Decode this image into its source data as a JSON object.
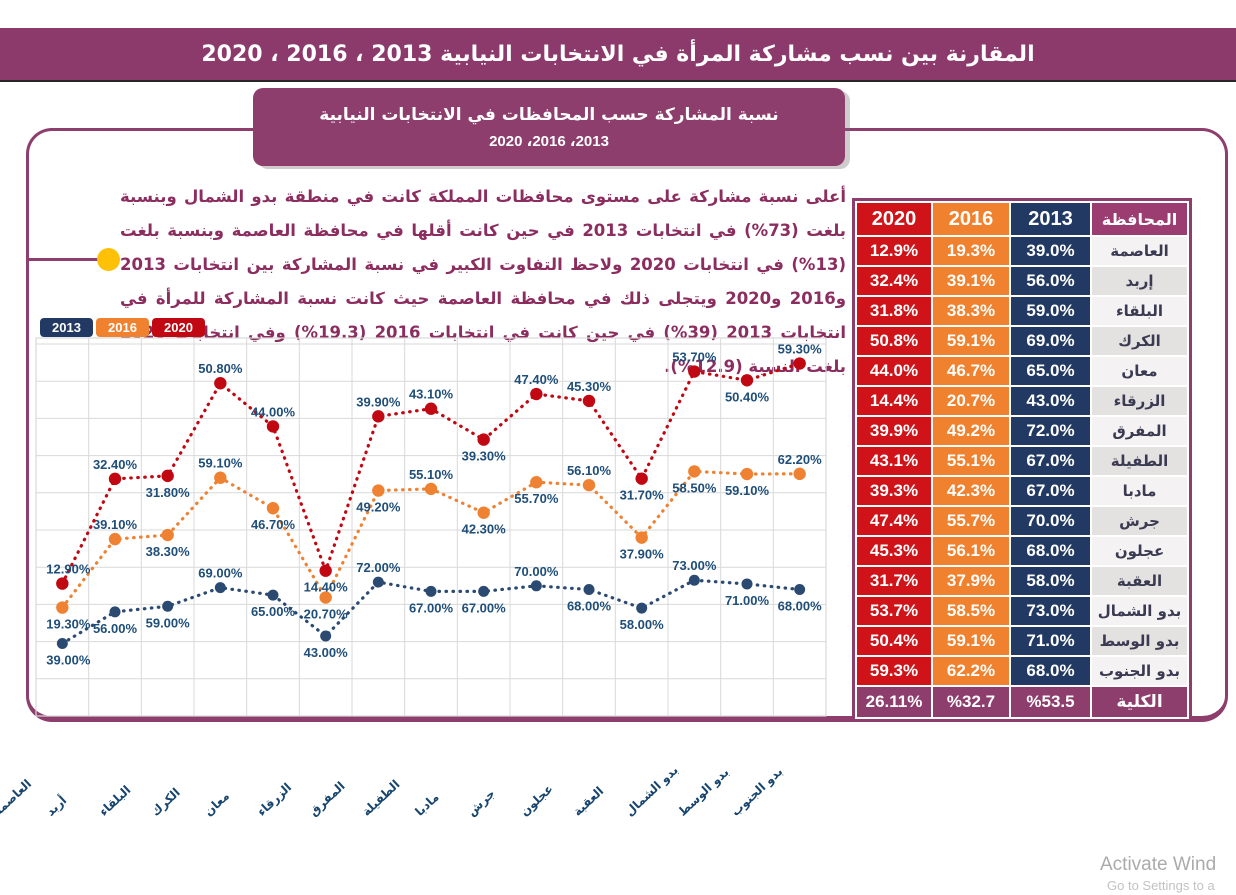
{
  "header": {
    "title": "المقارنة بين نسب مشاركة المرأة في الانتخابات النيابية 2013 ، 2016 ، 2020"
  },
  "subtitle": {
    "line1": "نسبة المشاركة حسب المحافظات في الانتخابات النيابية",
    "line2": "2013، 2016، 2020"
  },
  "note": {
    "text": "أعلى نسبة مشاركة على مستوى محافظات المملكة كانت في منطقة بدو الشمال وبنسبة بلغت (73%) في انتخابات 2013 في حين كانت أقلها في محافظة العاصمة وبنسبة بلغت (13%) في انتخابات 2020 ولاحظ التفاوت الكبير في نسبة المشاركة بين انتخابات 2013 و2016 و2020 ويتجلى ذلك في محافظة العاصمة حيث كانت نسبة المشاركة للمرأة في انتخابات 2013 (39%) في حين كانت في انتخابات 2016 (19.3%) وفي انتخابات 2020 بلغت النسبة (12.9%)."
  },
  "legend": [
    {
      "label": "2013",
      "color": "#223A63"
    },
    {
      "label": "2016",
      "color": "#F0822F"
    },
    {
      "label": "2020",
      "color": "#C00712"
    }
  ],
  "chart_data": {
    "type": "line",
    "stacked": true,
    "categories": [
      "العاصمة",
      "أربد",
      "البلقاء",
      "الكرك",
      "معان",
      "الزرقاء",
      "المفرق",
      "الطفيلة",
      "مادبا",
      "جرش",
      "عجلون",
      "العقبة",
      "بدو الشمال",
      "بدو الوسط",
      "بدو الجنوب"
    ],
    "series": [
      {
        "name": "2013",
        "color": "#2B4A72",
        "values": [
          39.0,
          56.0,
          59.0,
          69.0,
          65.0,
          43.0,
          72.0,
          67.0,
          67.0,
          70.0,
          68.0,
          58.0,
          73.0,
          71.0,
          68.0
        ]
      },
      {
        "name": "2016",
        "color": "#EF8232",
        "values": [
          19.3,
          39.1,
          38.3,
          59.1,
          46.7,
          20.7,
          49.2,
          55.1,
          42.3,
          55.7,
          56.1,
          37.9,
          58.5,
          59.1,
          62.2
        ]
      },
      {
        "name": "2020",
        "color": "#C00712",
        "values": [
          12.9,
          32.4,
          31.8,
          50.8,
          44.0,
          14.4,
          39.9,
          43.1,
          39.3,
          47.4,
          45.3,
          31.7,
          53.7,
          50.4,
          59.3
        ]
      }
    ],
    "title": "نسبة المشاركة حسب المحافظات في الانتخابات النيابية 2013، 2016، 2020",
    "xlabel": "",
    "ylabel": "",
    "ylim": [
      0,
      200
    ],
    "grid": true,
    "legend_position": "top-left",
    "label_suffix": "%",
    "label_decimals": 2,
    "label_color": "#1F4E79"
  },
  "table": {
    "headers": [
      "2020",
      "2016",
      "2013",
      "المحافظة"
    ],
    "rows": [
      {
        "name": "العاصمة",
        "y2020": "12.9%",
        "y2016": "19.3%",
        "y2013": "39.0%"
      },
      {
        "name": "إربد",
        "y2020": "32.4%",
        "y2016": "39.1%",
        "y2013": "56.0%"
      },
      {
        "name": "البلقاء",
        "y2020": "31.8%",
        "y2016": "38.3%",
        "y2013": "59.0%"
      },
      {
        "name": "الكرك",
        "y2020": "50.8%",
        "y2016": "59.1%",
        "y2013": "69.0%"
      },
      {
        "name": "معان",
        "y2020": "44.0%",
        "y2016": "46.7%",
        "y2013": "65.0%"
      },
      {
        "name": "الزرقاء",
        "y2020": "14.4%",
        "y2016": "20.7%",
        "y2013": "43.0%"
      },
      {
        "name": "المفرق",
        "y2020": "39.9%",
        "y2016": "49.2%",
        "y2013": "72.0%"
      },
      {
        "name": "الطفيلة",
        "y2020": "43.1%",
        "y2016": "55.1%",
        "y2013": "67.0%"
      },
      {
        "name": "مادبا",
        "y2020": "39.3%",
        "y2016": "42.3%",
        "y2013": "67.0%"
      },
      {
        "name": "جرش",
        "y2020": "47.4%",
        "y2016": "55.7%",
        "y2013": "70.0%"
      },
      {
        "name": "عجلون",
        "y2020": "45.3%",
        "y2016": "56.1%",
        "y2013": "68.0%"
      },
      {
        "name": "العقبة",
        "y2020": "31.7%",
        "y2016": "37.9%",
        "y2013": "58.0%"
      },
      {
        "name": "بدو الشمال",
        "y2020": "53.7%",
        "y2016": "58.5%",
        "y2013": "73.0%"
      },
      {
        "name": "بدو الوسط",
        "y2020": "50.4%",
        "y2016": "59.1%",
        "y2013": "71.0%"
      },
      {
        "name": "بدو الجنوب",
        "y2020": "59.3%",
        "y2016": "62.2%",
        "y2013": "68.0%"
      }
    ],
    "total": {
      "name": "الكلية",
      "y2020": "26.11%",
      "y2016": "%32.7",
      "y2013": "%53.5"
    }
  },
  "watermark": {
    "line1": "Activate Wind",
    "line2": "Go to Settings to a"
  },
  "colors": {
    "purple": "#8E3E6C",
    "title_bar": "#8B3A6B",
    "table_header_purple": "#9C3D72",
    "table_red": "#D01319",
    "table_orange": "#F0822F",
    "table_navy": "#223A63",
    "row_light": "#F4F2F2",
    "row_dark": "#E4E1E1",
    "grid": "#D9D9D9",
    "label_blue": "#1F4E79",
    "bullet_yellow": "#FFC008"
  }
}
